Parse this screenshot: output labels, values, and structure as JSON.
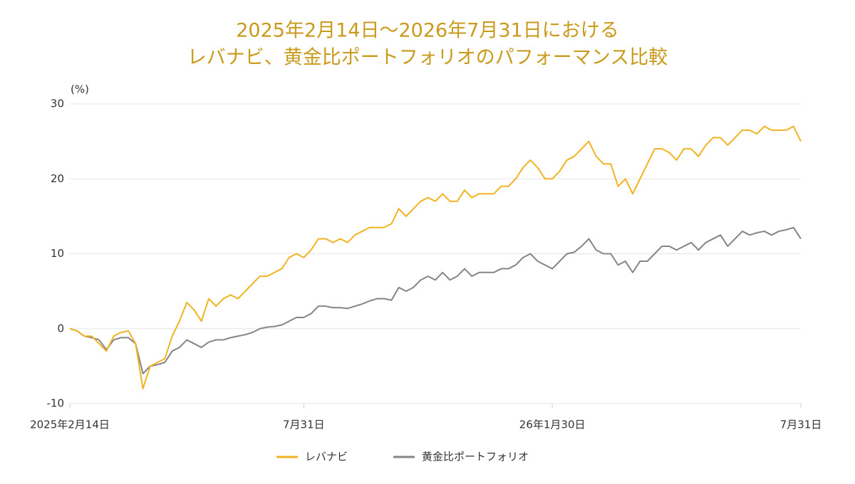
{
  "chart_data": {
    "type": "line",
    "title": [
      "2025年2月14日～2026年7月31日における",
      "レバナビ、黄金比ポートフォリオのパフォーマンス比較"
    ],
    "y_label": "(%)",
    "categories": [
      "2025年2月14日",
      null,
      null,
      null,
      null,
      null,
      null,
      null,
      null,
      null,
      null,
      null,
      null,
      null,
      null,
      null,
      null,
      null,
      null,
      null,
      null,
      null,
      null,
      null,
      null,
      null,
      null,
      null,
      null,
      null,
      null,
      null,
      "7月31日",
      null,
      null,
      null,
      null,
      null,
      null,
      null,
      null,
      null,
      null,
      null,
      null,
      null,
      null,
      null,
      null,
      null,
      null,
      null,
      null,
      null,
      null,
      null,
      null,
      null,
      null,
      null,
      null,
      null,
      null,
      null,
      null,
      null,
      "26年1月30日",
      null,
      null,
      null,
      null,
      null,
      null,
      null,
      null,
      null,
      null,
      null,
      null,
      null,
      null,
      null,
      null,
      null,
      null,
      null,
      null,
      null,
      null,
      null,
      null,
      null,
      null,
      null,
      null,
      null,
      null,
      null,
      null,
      null,
      "7月31日"
    ],
    "series": [
      {
        "name": "レバナビ",
        "color": "#f2b322",
        "values": [
          0,
          -0.3,
          -1,
          -1,
          -2,
          -3,
          -1,
          -0.5,
          -0.3,
          -2,
          -8,
          -5,
          -4.5,
          -4,
          -1,
          1,
          3.5,
          2.5,
          1,
          4,
          3,
          4,
          4.5,
          4,
          5,
          6,
          7,
          7,
          7.5,
          8,
          9.5,
          10,
          9.5,
          10.5,
          12,
          12,
          11.5,
          12,
          11.5,
          12.5,
          13,
          13.5,
          13.5,
          13.5,
          14,
          16,
          15,
          16,
          17,
          17.5,
          17,
          18,
          17,
          17,
          18.5,
          17.5,
          18,
          18,
          18,
          19,
          19,
          20,
          21.5,
          22.5,
          21.5,
          20,
          20,
          21,
          22.5,
          23,
          24,
          25,
          23,
          22,
          22,
          19,
          20,
          18,
          20,
          22,
          24,
          24,
          23.5,
          22.5,
          24,
          24,
          23,
          24.5,
          25.5,
          25.5,
          24.5,
          25.5,
          26.5,
          26.5,
          26,
          27,
          26.5,
          26.5,
          26.5,
          27,
          25
        ]
      },
      {
        "name": "黄金比ポートフォリオ",
        "color": "#858585",
        "values": [
          0,
          -0.3,
          -1,
          -1.2,
          -1.5,
          -2.8,
          -1.5,
          -1.2,
          -1.2,
          -2,
          -6,
          -5,
          -4.8,
          -4.5,
          -3,
          -2.5,
          -1.5,
          -2,
          -2.5,
          -1.8,
          -1.5,
          -1.5,
          -1.2,
          -1,
          -0.8,
          -0.5,
          0,
          0.2,
          0.3,
          0.5,
          1,
          1.5,
          1.5,
          2,
          3,
          3,
          2.8,
          2.8,
          2.7,
          3,
          3.3,
          3.7,
          4,
          4,
          3.8,
          5.5,
          5,
          5.5,
          6.5,
          7,
          6.5,
          7.5,
          6.5,
          7,
          8,
          7,
          7.5,
          7.5,
          7.5,
          8,
          8,
          8.5,
          9.5,
          10,
          9,
          8.5,
          8,
          9,
          10,
          10.2,
          11,
          12,
          10.5,
          10,
          10,
          8.5,
          9,
          7.5,
          9,
          9,
          10,
          11,
          11,
          10.5,
          11,
          11.5,
          10.5,
          11.5,
          12,
          12.5,
          11,
          12,
          13,
          12.5,
          12.8,
          13,
          12.5,
          13,
          13.2,
          13.5,
          12
        ]
      }
    ],
    "ylim": [
      -10,
      30
    ],
    "yticks": [
      -10,
      0,
      10,
      20,
      30
    ],
    "grid": true,
    "legend": "bottom"
  }
}
